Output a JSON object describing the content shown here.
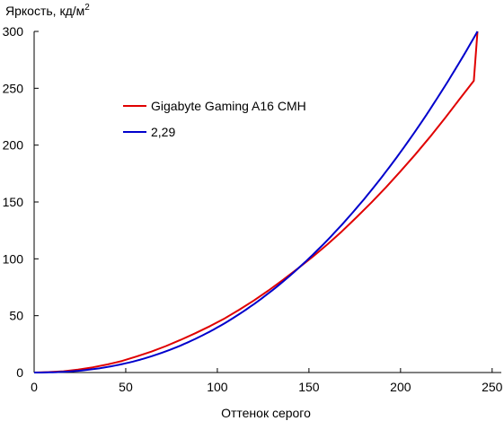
{
  "chart_data": {
    "type": "line",
    "title": "",
    "ylabel": "Яркость, кд/м",
    "ylabel_sup": "2",
    "xlabel": "Оттенок серого",
    "xlim": [
      0,
      255
    ],
    "ylim": [
      0,
      300
    ],
    "x_ticks": [
      0,
      50,
      100,
      150,
      200,
      250
    ],
    "y_ticks": [
      0,
      50,
      100,
      150,
      200,
      250,
      300
    ],
    "x_tick_labels": [
      "0",
      "50",
      "100",
      "150",
      "200",
      "250"
    ],
    "y_tick_labels": [
      "0",
      "50",
      "100",
      "150",
      "200",
      "250",
      "300"
    ],
    "grid": false,
    "legend_position": "upper-left",
    "series": [
      {
        "name": "Gigabyte Gaming A16 CMH",
        "color": "#e00000",
        "x": [
          0,
          8,
          16,
          24,
          32,
          40,
          48,
          56,
          64,
          72,
          80,
          88,
          96,
          104,
          112,
          120,
          128,
          136,
          144,
          152,
          160,
          168,
          176,
          184,
          192,
          200,
          208,
          216,
          224,
          232,
          240,
          242
        ],
        "y": [
          0,
          0.4,
          1.1,
          2.6,
          4.6,
          7.1,
          10.2,
          14.1,
          18.4,
          23.3,
          28.7,
          34.6,
          40.8,
          47.6,
          55.3,
          63.4,
          72.2,
          81.6,
          91.5,
          101.8,
          112.6,
          124.2,
          136.6,
          149.4,
          162.8,
          177.0,
          191.7,
          207.1,
          223.2,
          240.0,
          256.6,
          300
        ]
      },
      {
        "name": "2,29",
        "color": "#0000cc",
        "gamma": 2.29,
        "x_max": 242,
        "y_max": 300
      }
    ]
  }
}
